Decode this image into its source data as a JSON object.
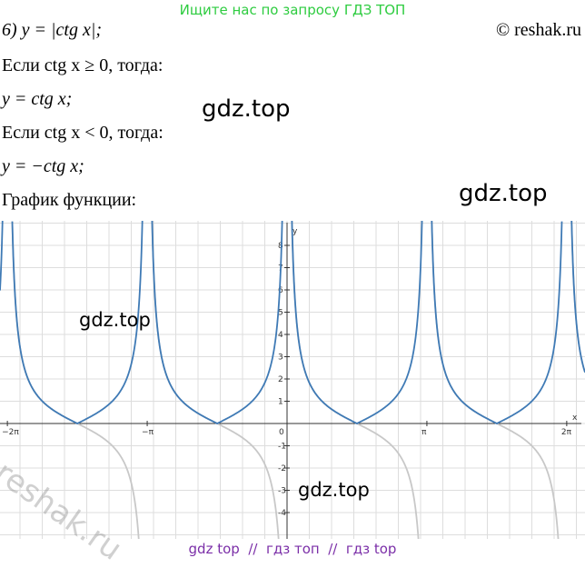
{
  "header": {
    "banner": "Ищите нас по запросу ГДЗ ТОП",
    "copyright": "© reshak.ru"
  },
  "lines": [
    "6) y = |ctg x|;",
    "Если ctg x ≥ 0, тогда:",
    "y = ctg x;",
    "Если ctg x < 0, тогда:",
    "y = −ctg x;",
    "График функции:"
  ],
  "watermarks": [
    "gdz.top",
    "gdz.top",
    "gdz.top",
    "gdz.top",
    "reshak.ru"
  ],
  "graph": {
    "x_label": "x",
    "y_label": "y",
    "origin_label": "0",
    "xticks": [
      {
        "value": -6.2832,
        "label": "−2π"
      },
      {
        "value": -3.1416,
        "label": "−π"
      },
      {
        "value": 3.1416,
        "label": "π"
      },
      {
        "value": 6.2832,
        "label": "2π"
      }
    ],
    "yticks": [
      -4,
      -3,
      -2,
      -1,
      1,
      2,
      3,
      4,
      5,
      6,
      7,
      8
    ]
  },
  "footer": "gdz top  //  гдз топ  //  гдз top"
}
